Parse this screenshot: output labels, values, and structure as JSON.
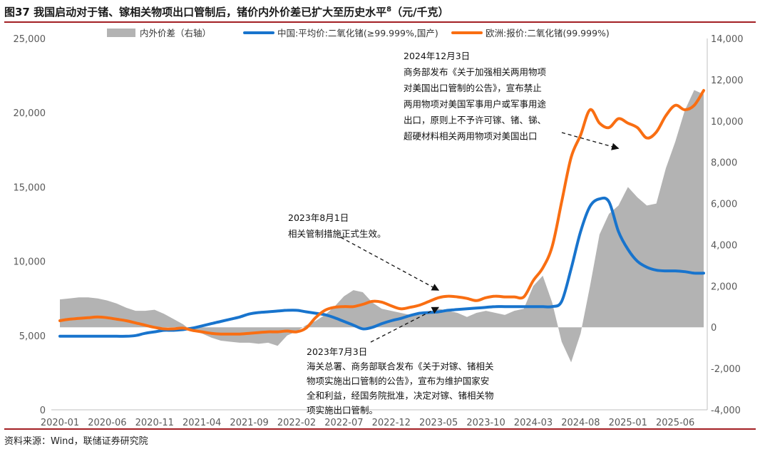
{
  "title": "图37 我国启动对于锗、镓相关物项出口管制后，锗价内外价差已扩大至历史水平",
  "title_sup": "8",
  "title_unit": "（元/千克）",
  "source": "资料来源：Wind，联储证券研究院",
  "colors": {
    "spread": "#b3b3b3",
    "china": "#1874cd",
    "europe": "#f96e12",
    "rule": "#a31f24",
    "axis_text": "#595959"
  },
  "chart_data": {
    "type": "line",
    "x_dates": [
      "2020-01",
      "2020-02",
      "2020-03",
      "2020-04",
      "2020-05",
      "2020-06",
      "2020-07",
      "2020-08",
      "2020-09",
      "2020-10",
      "2020-11",
      "2020-12",
      "2021-01",
      "2021-02",
      "2021-03",
      "2021-04",
      "2021-05",
      "2021-06",
      "2021-07",
      "2021-08",
      "2021-09",
      "2021-10",
      "2021-11",
      "2021-12",
      "2022-01",
      "2022-02",
      "2022-03",
      "2022-04",
      "2022-05",
      "2022-06",
      "2022-07",
      "2022-08",
      "2022-09",
      "2022-10",
      "2022-11",
      "2022-12",
      "2023-01",
      "2023-02",
      "2023-03",
      "2023-04",
      "2023-05",
      "2023-06",
      "2023-07",
      "2023-08",
      "2023-09",
      "2023-10",
      "2023-11",
      "2023-12",
      "2024-01",
      "2024-02",
      "2024-03",
      "2024-04",
      "2024-05",
      "2024-06",
      "2024-07",
      "2024-08",
      "2024-09",
      "2024-10",
      "2024-11",
      "2024-12",
      "2025-01",
      "2025-02",
      "2025-03",
      "2025-04",
      "2025-05",
      "2025-06",
      "2025-07",
      "2025-08",
      "2025-09"
    ],
    "x_ticks": [
      "2020-01",
      "2020-06",
      "2020-11",
      "2021-04",
      "2021-09",
      "2022-02",
      "2022-07",
      "2022-12",
      "2023-05",
      "2023-10",
      "2024-03",
      "2024-08",
      "2025-01",
      "2025-06"
    ],
    "y_left": {
      "min": 0,
      "max": 25000,
      "ticks": [
        "0",
        "5,000",
        "10,000",
        "15,000",
        "20,000",
        "25,000"
      ]
    },
    "y_right": {
      "min": -4000,
      "max": 14000,
      "ticks": [
        "-4,000",
        "-2,000",
        "0",
        "2,000",
        "4,000",
        "6,000",
        "8,000",
        "10,000",
        "12,000",
        "14,000"
      ]
    },
    "series": [
      {
        "name": "内外价差（右轴）",
        "axis": "right",
        "kind": "area",
        "values": [
          1350,
          1400,
          1450,
          1450,
          1400,
          1300,
          1150,
          950,
          800,
          800,
          850,
          650,
          400,
          150,
          -200,
          -300,
          -500,
          -650,
          -700,
          -750,
          -750,
          -800,
          -750,
          -900,
          -400,
          -200,
          100,
          300,
          600,
          1000,
          1500,
          1800,
          1700,
          1200,
          900,
          800,
          700,
          600,
          600,
          700,
          900,
          800,
          700,
          500,
          700,
          800,
          700,
          600,
          800,
          900,
          2000,
          2500,
          1200,
          -700,
          -1700,
          -300,
          2000,
          4500,
          5500,
          5900,
          6800,
          6300,
          5900,
          6000,
          7700,
          9000,
          10500,
          11500,
          11300
        ]
      },
      {
        "name": "中国:平均价:二氧化锗(≥99.999%,国产)",
        "axis": "left",
        "kind": "line",
        "values": [
          4950,
          4950,
          4950,
          4950,
          4950,
          4950,
          4950,
          4950,
          5000,
          5150,
          5250,
          5350,
          5350,
          5400,
          5500,
          5650,
          5800,
          5950,
          6100,
          6250,
          6450,
          6550,
          6600,
          6650,
          6700,
          6700,
          6600,
          6500,
          6400,
          6200,
          5950,
          5700,
          5450,
          5550,
          5800,
          6000,
          6150,
          6350,
          6500,
          6550,
          6600,
          6700,
          6750,
          6800,
          6850,
          6900,
          6950,
          6950,
          6950,
          6950,
          6950,
          6950,
          6950,
          7300,
          9500,
          12000,
          13700,
          14200,
          14000,
          12000,
          10800,
          10000,
          9600,
          9400,
          9350,
          9350,
          9300,
          9200,
          9200
        ]
      },
      {
        "name": "欧洲:报价:二氧化锗(99.999%)",
        "axis": "left",
        "kind": "line",
        "values": [
          6000,
          6100,
          6150,
          6200,
          6250,
          6200,
          6100,
          6000,
          5850,
          5700,
          5550,
          5450,
          5450,
          5500,
          5350,
          5250,
          5150,
          5100,
          5100,
          5100,
          5150,
          5200,
          5250,
          5250,
          5300,
          5250,
          5500,
          6200,
          6700,
          6900,
          6950,
          6950,
          7100,
          7300,
          7250,
          7000,
          6800,
          6900,
          7050,
          7300,
          7550,
          7650,
          7600,
          7500,
          7350,
          7550,
          7650,
          7600,
          7600,
          7600,
          8700,
          9550,
          11000,
          14000,
          17000,
          18500,
          20200,
          19300,
          19000,
          19600,
          19300,
          19000,
          18300,
          18700,
          19800,
          20500,
          20200,
          20500,
          21500
        ]
      }
    ],
    "annotations": [
      {
        "lines": [
          "2024年12月3日",
          "商务部发布《关于加强相关两用物项",
          "对美国出口管制的公告》，宣布禁止",
          "两用物项对美国军事用户或军事用途",
          "出口，原则上不予许可镓、锗、锑、",
          "超硬材料相关两用物项对美国出口"
        ],
        "target_date": "2024-12",
        "target_value": 17600
      },
      {
        "lines": [
          "2023年8月1日",
          "相关管制措施正式生效。"
        ],
        "target_date": "2023-05",
        "target_value": 8050
      },
      {
        "lines": [
          "2023年7月3日",
          "海关总署、商务部联合发布《关于对镓、锗相关",
          "物项实施出口管制的公告》，宣布为维护国家安",
          "全和利益，经国务院批准，决定对镓、锗相关物",
          "项实施出口管制。"
        ],
        "target_date": "2023-05",
        "target_value": 6900
      }
    ]
  }
}
